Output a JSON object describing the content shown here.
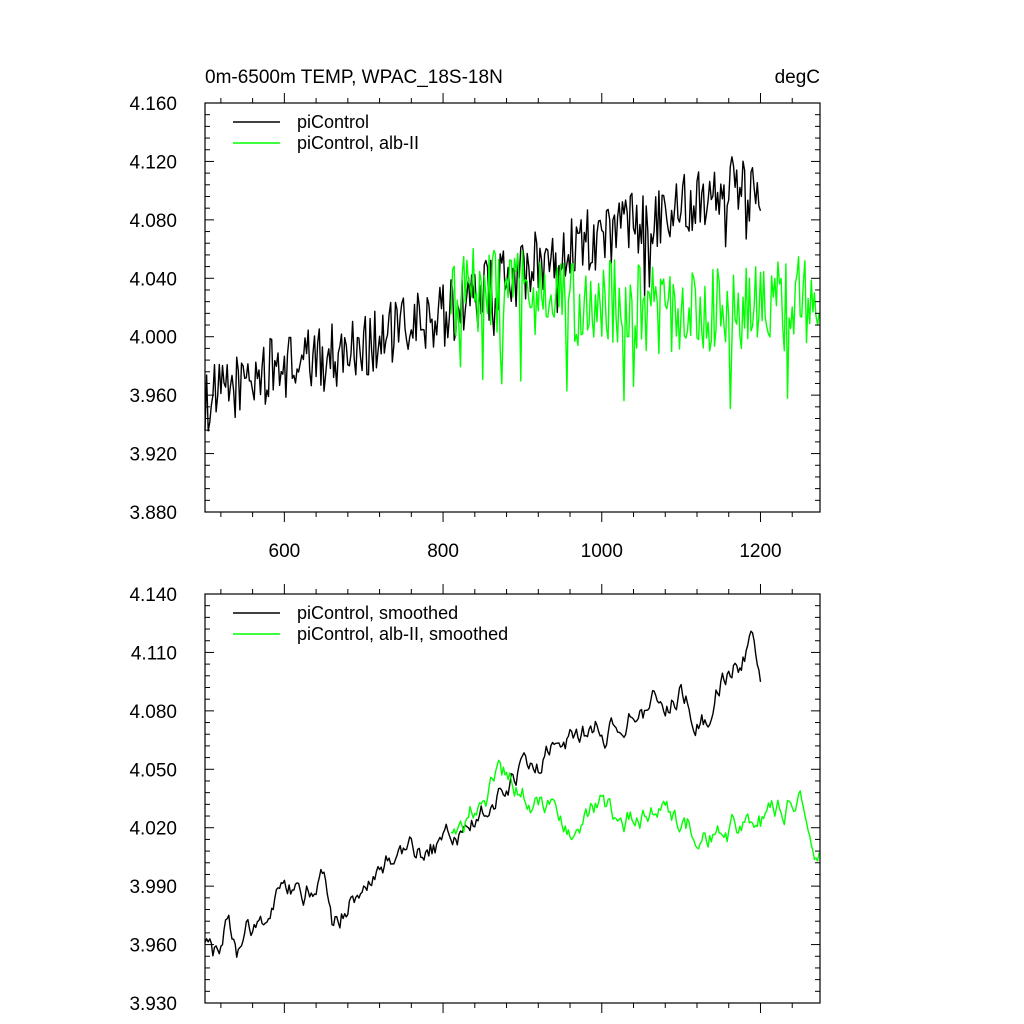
{
  "chart_data": [
    {
      "type": "line",
      "title": "0m-6500m TEMP, WPAC_18S-18N",
      "units": "degC",
      "xlabel": "",
      "ylabel": "",
      "xlim": [
        500,
        1275
      ],
      "ylim": [
        3.88,
        4.16
      ],
      "xticks": [
        600,
        800,
        1000,
        1200
      ],
      "xtick_labels": [
        "600",
        "800",
        "1000",
        "1200"
      ],
      "yticks": [
        3.88,
        3.92,
        3.96,
        4.0,
        4.04,
        4.08,
        4.12,
        4.16
      ],
      "ytick_labels": [
        "3.880",
        "3.920",
        "3.960",
        "4.000",
        "4.040",
        "4.080",
        "4.120",
        "4.160"
      ],
      "grid": false,
      "legend_position": "top-left",
      "series": [
        {
          "name": "piControl",
          "color": "#000000",
          "x": [
            500,
            550,
            600,
            650,
            700,
            750,
            800,
            850,
            900,
            950,
            1000,
            1050,
            1100,
            1150,
            1200
          ],
          "values": [
            3.955,
            3.97,
            3.98,
            3.985,
            3.995,
            4.005,
            4.015,
            4.03,
            4.045,
            4.06,
            4.07,
            4.08,
            4.09,
            4.105,
            4.1
          ]
        },
        {
          "name": "piControl, alb-II",
          "color": "#00ff00",
          "x": [
            810,
            850,
            900,
            950,
            1000,
            1050,
            1100,
            1150,
            1200,
            1250,
            1275
          ],
          "values": [
            4.02,
            4.035,
            4.03,
            4.02,
            4.025,
            4.02,
            4.015,
            4.02,
            4.02,
            4.03,
            4.01
          ]
        }
      ]
    },
    {
      "type": "line",
      "title": "",
      "xlabel": "",
      "ylabel": "",
      "xlim": [
        500,
        1275
      ],
      "ylim": [
        3.93,
        4.14
      ],
      "xticks": [
        600,
        800,
        1000,
        1200
      ],
      "yticks": [
        3.93,
        3.96,
        3.99,
        4.02,
        4.05,
        4.08,
        4.11,
        4.14
      ],
      "ytick_labels": [
        "3.930",
        "3.960",
        "3.990",
        "4.020",
        "4.050",
        "4.080",
        "4.110",
        "4.140"
      ],
      "grid": false,
      "legend_position": "top-left",
      "series": [
        {
          "name": "piControl, smoothed",
          "color": "#000000",
          "x": [
            500,
            510,
            520,
            530,
            540,
            550,
            600,
            650,
            660,
            700,
            750,
            800,
            850,
            880,
            900,
            950,
            1000,
            1050,
            1100,
            1130,
            1150,
            1190,
            1200
          ],
          "values": [
            3.958,
            3.955,
            3.965,
            3.975,
            3.958,
            3.97,
            3.985,
            3.993,
            3.97,
            3.995,
            4.005,
            4.013,
            4.025,
            4.04,
            4.05,
            4.06,
            4.07,
            4.08,
            4.09,
            4.075,
            4.1,
            4.112,
            4.1
          ]
        },
        {
          "name": "piControl, alb-II, smoothed",
          "color": "#00ff00",
          "x": [
            810,
            830,
            850,
            870,
            900,
            930,
            950,
            980,
            1000,
            1050,
            1100,
            1150,
            1200,
            1230,
            1250,
            1275
          ],
          "values": [
            4.02,
            4.025,
            4.035,
            4.045,
            4.04,
            4.03,
            4.02,
            4.025,
            4.03,
            4.025,
            4.02,
            4.018,
            4.022,
            4.03,
            4.035,
            4.01
          ]
        }
      ]
    }
  ]
}
